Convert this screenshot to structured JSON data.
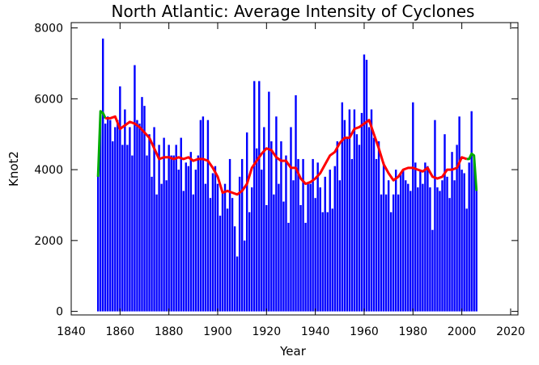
{
  "chart_data": {
    "type": "bar",
    "title": "North Atlantic: Average Intensity of Cyclones",
    "x_label": "Year",
    "y_label": "Knot2",
    "xlim": [
      1840,
      2023
    ],
    "xticks": [
      1840,
      1860,
      1880,
      1900,
      1920,
      1940,
      1960,
      1980,
      2000,
      2020
    ],
    "ylim": [
      -100,
      8150
    ],
    "yticks": [
      0,
      2000,
      4000,
      6000,
      8000
    ],
    "series": [
      {
        "type": "bar",
        "color": "#0000ff",
        "x": [
          1851,
          1852,
          1853,
          1854,
          1855,
          1856,
          1857,
          1858,
          1859,
          1860,
          1861,
          1862,
          1863,
          1864,
          1865,
          1866,
          1867,
          1868,
          1869,
          1870,
          1871,
          1872,
          1873,
          1874,
          1875,
          1876,
          1877,
          1878,
          1879,
          1880,
          1881,
          1882,
          1883,
          1884,
          1885,
          1886,
          1887,
          1888,
          1889,
          1890,
          1891,
          1892,
          1893,
          1894,
          1895,
          1896,
          1897,
          1898,
          1899,
          1900,
          1901,
          1902,
          1903,
          1904,
          1905,
          1906,
          1907,
          1908,
          1909,
          1910,
          1911,
          1912,
          1913,
          1914,
          1915,
          1916,
          1917,
          1918,
          1919,
          1920,
          1921,
          1922,
          1923,
          1924,
          1925,
          1926,
          1927,
          1928,
          1929,
          1930,
          1931,
          1932,
          1933,
          1934,
          1935,
          1936,
          1937,
          1938,
          1939,
          1940,
          1941,
          1942,
          1943,
          1944,
          1945,
          1946,
          1947,
          1948,
          1949,
          1950,
          1951,
          1952,
          1953,
          1954,
          1955,
          1956,
          1957,
          1958,
          1959,
          1960,
          1961,
          1962,
          1963,
          1964,
          1965,
          1966,
          1967,
          1968,
          1969,
          1970,
          1971,
          1972,
          1973,
          1974,
          1975,
          1976,
          1977,
          1978,
          1979,
          1980,
          1981,
          1982,
          1983,
          1984,
          1985,
          1986,
          1987,
          1988,
          1989,
          1990,
          1991,
          1992,
          1993,
          1994,
          1995,
          1996,
          1997,
          1998,
          1999,
          2000,
          2001,
          2002,
          2003,
          2004,
          2005,
          2006
        ],
        "values": [
          3900,
          5600,
          7700,
          5300,
          5500,
          5400,
          4800,
          5200,
          5400,
          6350,
          4700,
          5700,
          4700,
          5200,
          4400,
          6950,
          5400,
          5300,
          6050,
          5800,
          4400,
          5000,
          3800,
          5200,
          3300,
          4700,
          3600,
          4900,
          3700,
          4700,
          4400,
          4400,
          4700,
          4000,
          4900,
          3400,
          4200,
          4100,
          4500,
          3300,
          4000,
          4400,
          5400,
          5500,
          3600,
          5400,
          3200,
          3900,
          4100,
          3600,
          2700,
          3400,
          3600,
          2900,
          4300,
          3200,
          2400,
          1550,
          3800,
          4300,
          2000,
          5050,
          2800,
          3500,
          6500,
          4600,
          6500,
          4000,
          5200,
          3000,
          6200,
          4800,
          3300,
          5500,
          3600,
          4800,
          3100,
          4400,
          2500,
          5200,
          3700,
          6100,
          4300,
          3000,
          4300,
          2500,
          3600,
          3600,
          4300,
          3200,
          4200,
          3500,
          2800,
          3800,
          2800,
          4000,
          2900,
          4100,
          4800,
          3700,
          5900,
          5400,
          4900,
          5700,
          4300,
          5700,
          5000,
          4700,
          5600,
          7250,
          7100,
          5200,
          5700,
          4900,
          4300,
          4800,
          3300,
          4200,
          3300,
          3700,
          2800,
          3300,
          4000,
          3300,
          3900,
          4000,
          3700,
          3600,
          3400,
          5900,
          4200,
          3500,
          4000,
          3600,
          4200,
          4100,
          3500,
          2300,
          5400,
          3500,
          3400,
          3700,
          5000,
          3800,
          3200,
          4500,
          3700,
          4700,
          5500,
          4000,
          3900,
          2900,
          4200,
          5650,
          4400,
          3400
        ]
      },
      {
        "type": "line",
        "color": "#00aa00",
        "x": [
          1851,
          1852,
          1853,
          1854,
          null,
          2002,
          2003,
          2004,
          2005,
          2006
        ],
        "values": [
          3800,
          5650,
          5600,
          5450,
          null,
          4300,
          4300,
          4450,
          4400,
          3400
        ]
      },
      {
        "type": "line",
        "color": "#ff0000",
        "x": [
          1854,
          1856,
          1858,
          1860,
          1862,
          1864,
          1866,
          1868,
          1870,
          1872,
          1874,
          1876,
          1878,
          1880,
          1882,
          1884,
          1886,
          1888,
          1890,
          1892,
          1894,
          1896,
          1898,
          1900,
          1902,
          1904,
          1906,
          1908,
          1910,
          1912,
          1914,
          1916,
          1918,
          1920,
          1922,
          1924,
          1926,
          1928,
          1930,
          1932,
          1934,
          1936,
          1938,
          1940,
          1942,
          1944,
          1946,
          1948,
          1950,
          1952,
          1954,
          1956,
          1958,
          1960,
          1962,
          1964,
          1966,
          1968,
          1970,
          1972,
          1974,
          1976,
          1978,
          1980,
          1982,
          1984,
          1986,
          1988,
          1990,
          1992,
          1994,
          1996,
          1998,
          2000,
          2002
        ],
        "values": [
          5450,
          5450,
          5500,
          5150,
          5250,
          5350,
          5300,
          5200,
          5050,
          4900,
          4600,
          4300,
          4350,
          4350,
          4300,
          4350,
          4300,
          4350,
          4250,
          4300,
          4300,
          4250,
          4050,
          3800,
          3350,
          3400,
          3350,
          3300,
          3400,
          3600,
          4050,
          4250,
          4450,
          4600,
          4550,
          4350,
          4250,
          4250,
          4050,
          4050,
          3750,
          3600,
          3650,
          3750,
          3900,
          4150,
          4400,
          4500,
          4750,
          4900,
          4900,
          5150,
          5200,
          5300,
          5400,
          5000,
          4600,
          4150,
          3900,
          3700,
          3800,
          4000,
          4050,
          4050,
          4000,
          3950,
          4050,
          3800,
          3750,
          3800,
          4000,
          4000,
          4050,
          4350,
          4300
        ]
      }
    ]
  }
}
